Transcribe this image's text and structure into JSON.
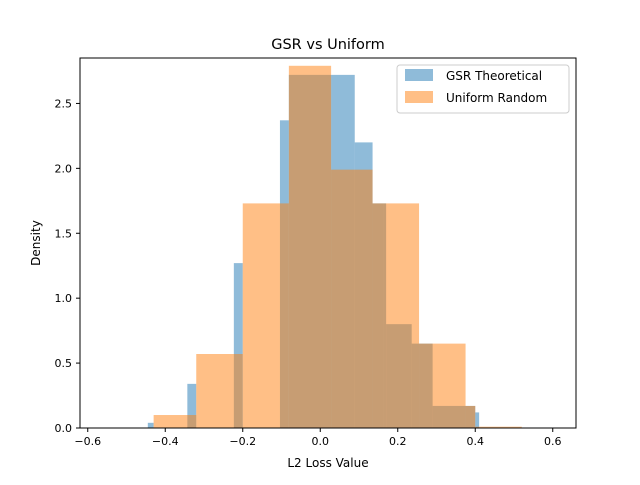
{
  "chart_data": {
    "type": "histogram",
    "title": "GSR vs Uniform",
    "xlabel": "L2 Loss Value",
    "ylabel": "Density",
    "xlim": [
      -0.62,
      0.66
    ],
    "ylim": [
      0,
      2.85
    ],
    "xticks": [
      -0.6,
      -0.4,
      -0.2,
      0.0,
      0.2,
      0.4,
      0.6
    ],
    "xtick_labels": [
      "−0.6",
      "−0.4",
      "−0.2",
      "0.0",
      "0.2",
      "0.4",
      "0.6"
    ],
    "yticks": [
      0.0,
      0.5,
      1.0,
      1.5,
      2.0,
      2.5
    ],
    "ytick_labels": [
      "0.0",
      "0.5",
      "1.0",
      "1.5",
      "2.0",
      "2.5"
    ],
    "grid": false,
    "legend_position": "top-right",
    "series": [
      {
        "name": "GSR Theoretical",
        "color": "#1f77b4",
        "alpha": 0.5,
        "bins": [
          {
            "x0": -0.445,
            "x1": -0.43,
            "density": 0.04
          },
          {
            "x0": -0.343,
            "x1": -0.32,
            "density": 0.34
          },
          {
            "x0": -0.223,
            "x1": -0.2,
            "density": 1.27
          },
          {
            "x0": -0.104,
            "x1": -0.081,
            "density": 2.37
          },
          {
            "x0": -0.081,
            "x1": 0.028,
            "density": 2.72
          },
          {
            "x0": 0.028,
            "x1": 0.089,
            "density": 2.72
          },
          {
            "x0": 0.089,
            "x1": 0.135,
            "density": 2.2
          },
          {
            "x0": 0.135,
            "x1": 0.162,
            "density": 1.73
          },
          {
            "x0": 0.162,
            "x1": 0.17,
            "density": 1.73
          },
          {
            "x0": 0.17,
            "x1": 0.236,
            "density": 0.8
          },
          {
            "x0": 0.236,
            "x1": 0.255,
            "density": 0.65
          },
          {
            "x0": 0.255,
            "x1": 0.29,
            "density": 0.65
          },
          {
            "x0": 0.29,
            "x1": 0.4,
            "density": 0.17
          },
          {
            "x0": 0.4,
            "x1": 0.41,
            "density": 0.12
          }
        ]
      },
      {
        "name": "Uniform Random",
        "color": "#ff7f0e",
        "alpha": 0.5,
        "bins": [
          {
            "x0": -0.43,
            "x1": -0.32,
            "density": 0.1
          },
          {
            "x0": -0.32,
            "x1": -0.2,
            "density": 0.57
          },
          {
            "x0": -0.2,
            "x1": -0.081,
            "density": 1.73
          },
          {
            "x0": -0.081,
            "x1": 0.028,
            "density": 2.79
          },
          {
            "x0": 0.028,
            "x1": 0.135,
            "density": 1.99
          },
          {
            "x0": 0.135,
            "x1": 0.255,
            "density": 1.73
          },
          {
            "x0": 0.255,
            "x1": 0.375,
            "density": 0.65
          },
          {
            "x0": 0.375,
            "x1": 0.4,
            "density": 0.17
          },
          {
            "x0": 0.4,
            "x1": 0.52,
            "density": 0.01
          }
        ]
      }
    ]
  }
}
